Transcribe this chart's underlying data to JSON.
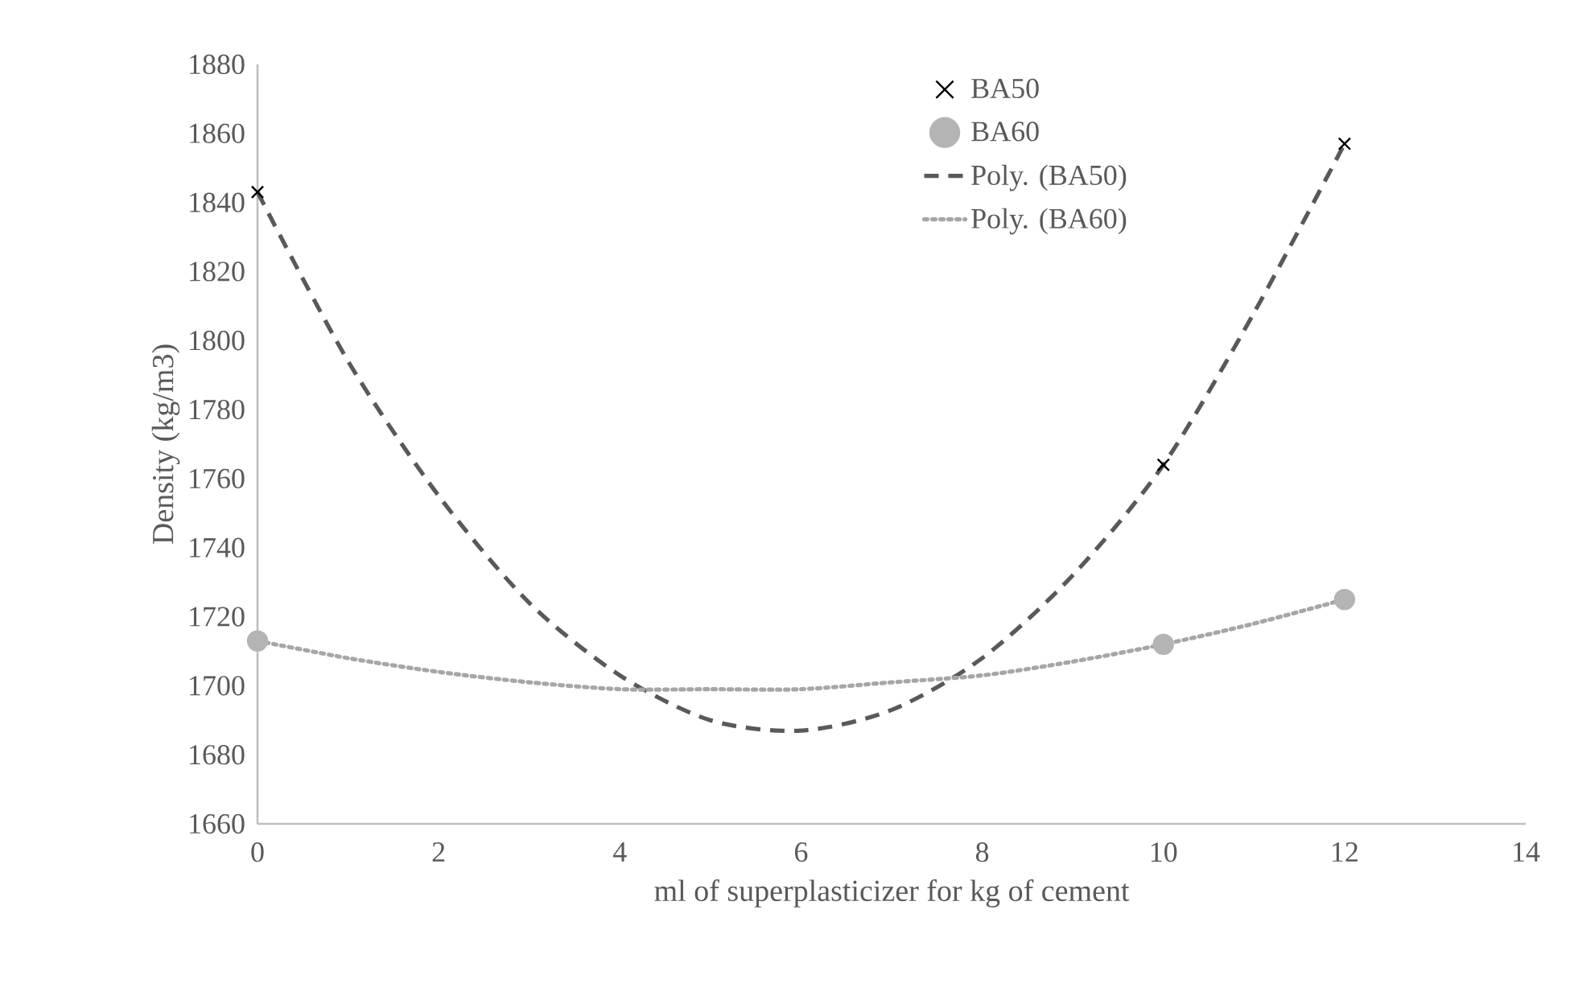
{
  "chart_data": {
    "type": "scatter",
    "xlabel": "ml of superplasticizer for kg of cement",
    "ylabel": "Density (kg/m3)",
    "xlim": [
      0,
      14
    ],
    "xticks": [
      0,
      2,
      4,
      6,
      8,
      10,
      12,
      14
    ],
    "ylim": [
      1660,
      1880
    ],
    "yticks": [
      1660,
      1680,
      1700,
      1720,
      1740,
      1760,
      1780,
      1800,
      1820,
      1840,
      1860,
      1880
    ],
    "grid": false,
    "legend": "top right",
    "series": [
      {
        "name": "BA50",
        "marker": "cross",
        "color": "#000000",
        "x": [
          0,
          10,
          12
        ],
        "values": [
          1843,
          1764,
          1857
        ]
      },
      {
        "name": "BA60",
        "marker": "circle",
        "color": "#b4b4b4",
        "x": [
          0,
          10,
          12
        ],
        "values": [
          1713,
          1712,
          1725
        ]
      },
      {
        "name": "Poly. (BA50)",
        "type": "line",
        "line_style": "dashed",
        "color": "#595959",
        "x": [
          0,
          1,
          2,
          3,
          4,
          5,
          6,
          7,
          8,
          9,
          10,
          11,
          12
        ],
        "values": [
          1843,
          1794,
          1755,
          1724,
          1703,
          1690,
          1687,
          1693,
          1708,
          1732,
          1764,
          1808,
          1857
        ]
      },
      {
        "name": "Poly. (BA60)",
        "type": "line",
        "line_style": "dotted",
        "color": "#a6a6a6",
        "x": [
          0,
          1,
          2,
          3,
          4,
          5,
          6,
          7,
          8,
          9,
          10,
          11,
          12
        ],
        "values": [
          1713,
          1708,
          1704,
          1701,
          1699,
          1699,
          1699,
          1701,
          1703,
          1707,
          1712,
          1718,
          1725
        ]
      }
    ]
  }
}
